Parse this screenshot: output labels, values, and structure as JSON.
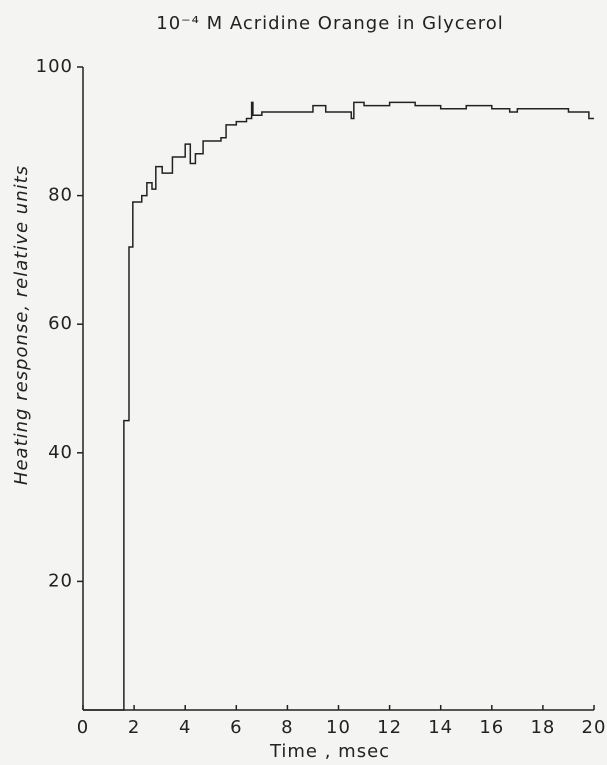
{
  "chart_data": {
    "type": "line",
    "title": "10⁻⁴ M Acridine Orange in Glycerol",
    "x_label": "Time , msec",
    "y_label": "Heating response, relative units",
    "xlim": [
      0,
      20
    ],
    "ylim": [
      0,
      100
    ],
    "xticks": [
      0,
      2,
      4,
      6,
      8,
      10,
      12,
      14,
      16,
      18,
      20
    ],
    "yticks": [
      20,
      40,
      60,
      80,
      100
    ],
    "grid": false,
    "series": [
      {
        "color": "#222222",
        "x": [
          0,
          1.6,
          1.6,
          1.8,
          1.8,
          1.95,
          1.95,
          2.3,
          2.3,
          2.5,
          2.5,
          2.7,
          2.7,
          2.85,
          2.85,
          3.1,
          3.1,
          3.5,
          3.5,
          4.0,
          4.0,
          4.2,
          4.2,
          4.4,
          4.4,
          4.7,
          4.7,
          5.4,
          5.4,
          5.6,
          5.6,
          6.0,
          6.0,
          6.4,
          6.4,
          6.6,
          6.6,
          6.65,
          6.65,
          7.0,
          7.0,
          9.0,
          9.0,
          9.5,
          9.5,
          10.5,
          10.5,
          10.6,
          10.6,
          11.0,
          11.0,
          12.0,
          12.0,
          13.0,
          13.0,
          14.0,
          14.0,
          15.0,
          15.0,
          16.0,
          16.0,
          16.7,
          16.7,
          17.0,
          17.0,
          19.0,
          19.0,
          19.8,
          19.8,
          20
        ],
        "values": [
          0,
          0,
          45,
          45,
          72,
          72,
          79,
          79,
          80,
          80,
          82,
          82,
          81,
          81,
          84.5,
          84.5,
          83.5,
          83.5,
          86,
          86,
          88,
          88,
          85,
          85,
          86.5,
          86.5,
          88.5,
          88.5,
          89,
          89,
          91,
          91,
          91.5,
          91.5,
          92,
          92,
          94.5,
          94.5,
          92.5,
          92.5,
          93,
          93,
          94,
          94,
          93,
          93,
          92,
          92,
          94.5,
          94.5,
          94,
          94,
          94.5,
          94.5,
          94,
          94,
          93.5,
          93.5,
          94,
          94,
          93.5,
          93.5,
          93,
          93,
          93.5,
          93.5,
          93,
          93,
          92,
          92
        ]
      }
    ]
  }
}
